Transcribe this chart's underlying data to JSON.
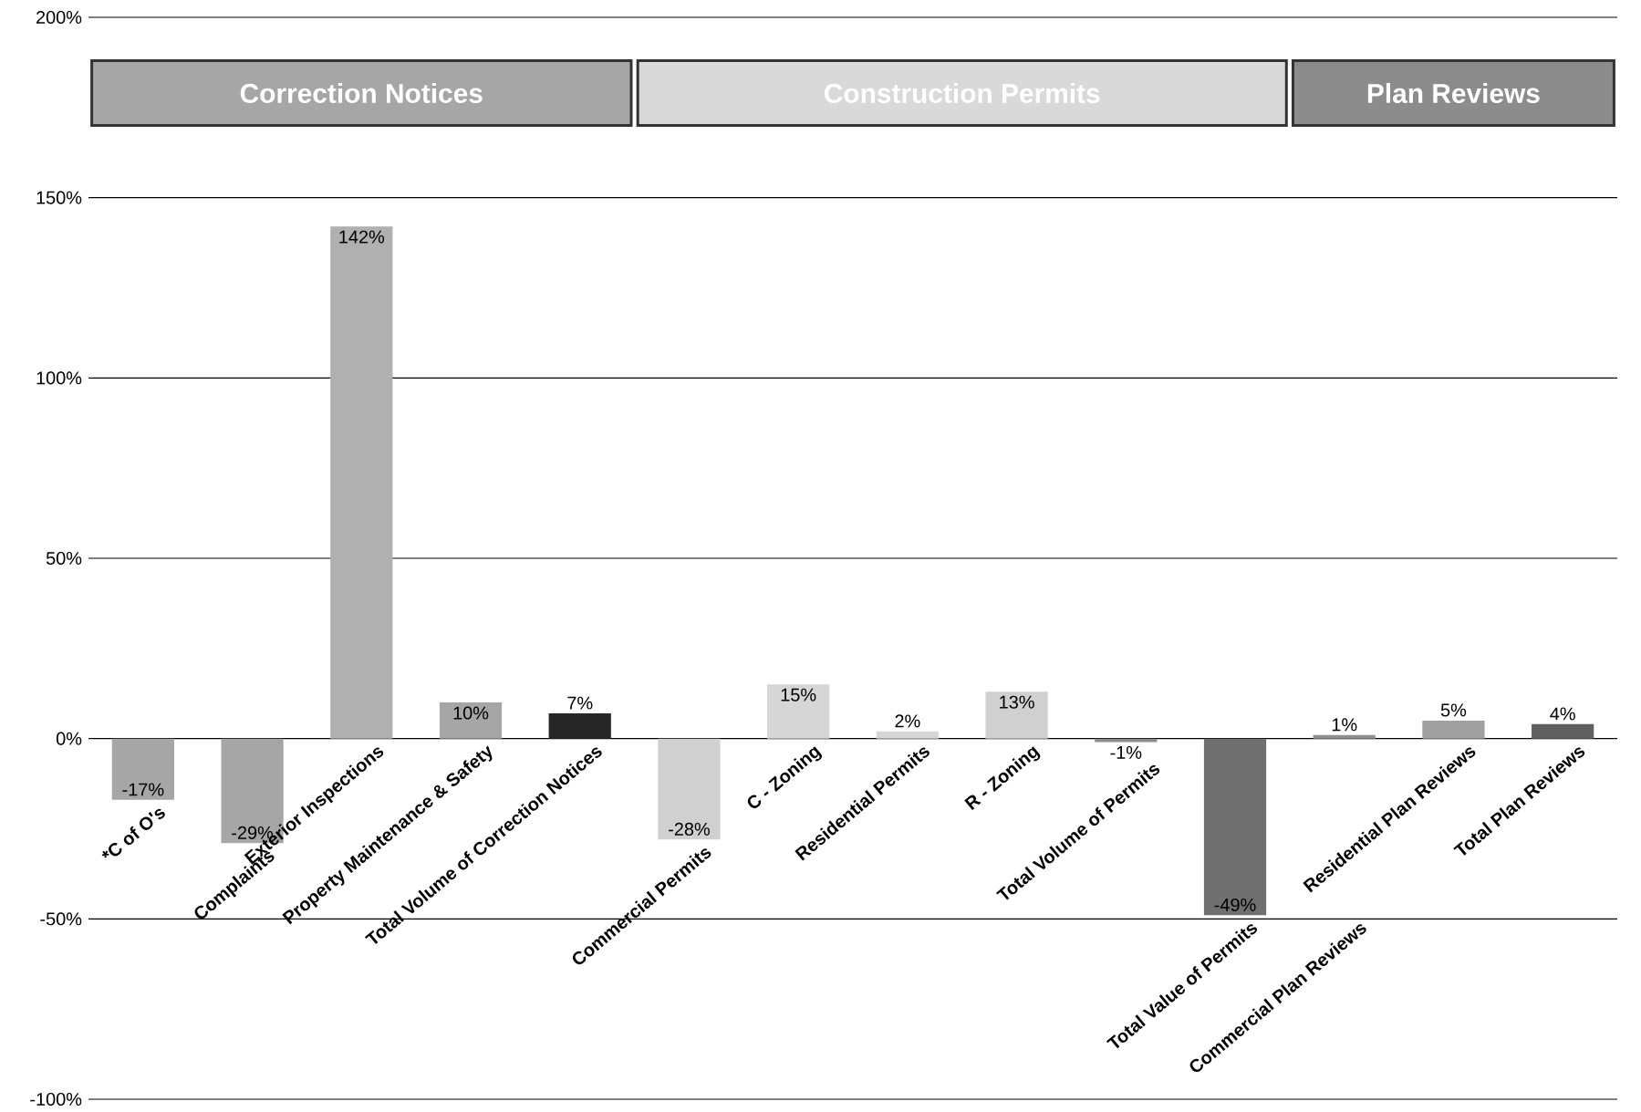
{
  "chart_data": {
    "type": "bar",
    "categories": [
      "*C of O's",
      "Complaints",
      "Exterior Inspections",
      "Property Maintenance & Safety",
      "Total Volume of Correction Notices",
      "Commercial Permits",
      "C - Zoning",
      "Residential Permits",
      "R - Zoning",
      "Total Volume of Permits",
      "Total Value of Permits",
      "Commercial Plan Reviews",
      "Residential Plan Reviews",
      "Total Plan Reviews"
    ],
    "values": [
      -17,
      -29,
      142,
      10,
      7,
      -28,
      15,
      2,
      13,
      -1,
      -49,
      1,
      5,
      4
    ],
    "value_labels": [
      "-17%",
      "-29%",
      "142%",
      "10%",
      "7%",
      "-28%",
      "15%",
      "2%",
      "13%",
      "-1%",
      "-49%",
      "1%",
      "5%",
      "4%"
    ],
    "colors": [
      "#a6a6a6",
      "#a6a6a6",
      "#b0b0b0",
      "#a6a6a6",
      "#262626",
      "#d0d0d0",
      "#d6d6d6",
      "#d6d6d6",
      "#d0d0d0",
      "#8c8c8c",
      "#707070",
      "#909090",
      "#a0a0a0",
      "#606060"
    ],
    "ylim": [
      -100,
      200
    ],
    "yticks": [
      {
        "value": -100,
        "label": "-100%"
      },
      {
        "value": -50,
        "label": "-50%"
      },
      {
        "value": 0,
        "label": "0%"
      },
      {
        "value": 50,
        "label": "50%"
      },
      {
        "value": 100,
        "label": "100%"
      },
      {
        "value": 150,
        "label": "150%"
      },
      {
        "value": 200,
        "label": "200%"
      }
    ],
    "grid": "y",
    "annotations": [
      "Correction Notices",
      "Construction Permits",
      "Plan Reviews"
    ]
  }
}
